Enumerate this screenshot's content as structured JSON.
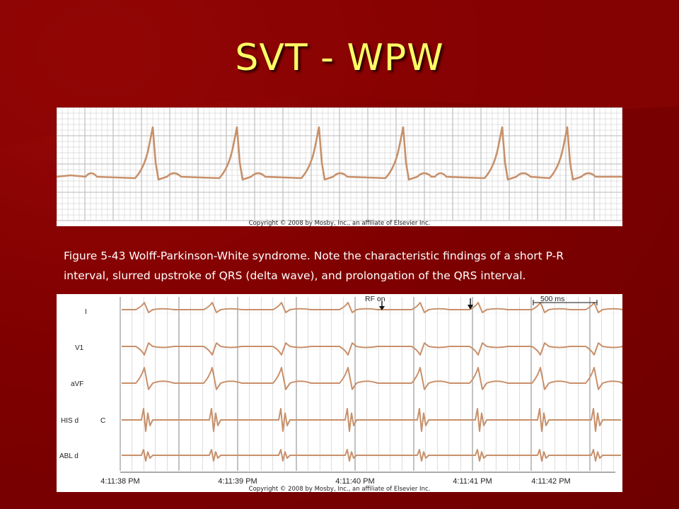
{
  "slide": {
    "title": "SVT - WPW",
    "caption_line1": "Figure 5-43 Wolff-Parkinson-White syndrome. Note the characteristic findings of a short P-R",
    "caption_line2": "interval, slurred upstroke of QRS (delta wave), and prolongation of the QRS interval."
  },
  "top_strip": {
    "copyright": "Copyright © 2008 by Mosby, Inc., an affiliate of Elsevier Inc."
  },
  "bottom_strip": {
    "leads": [
      "I",
      "V1",
      "aVF",
      "HIS d",
      "ABL d"
    ],
    "his_channel_marker": "C",
    "rf_on_label": "RF on",
    "scale_label": "500 ms",
    "times": [
      "4:11:38 PM",
      "4:11:39 PM",
      "4:11:40 PM",
      "4:11:41 PM",
      "4:11:42 PM"
    ],
    "copyright": "Copyright © 2008 by Mosby, Inc., an affiliate of Elsevier Inc."
  },
  "colors": {
    "background": "#800000",
    "title": "#ffff66",
    "trace": "#c8906a",
    "grid": "#b8b8b8"
  }
}
